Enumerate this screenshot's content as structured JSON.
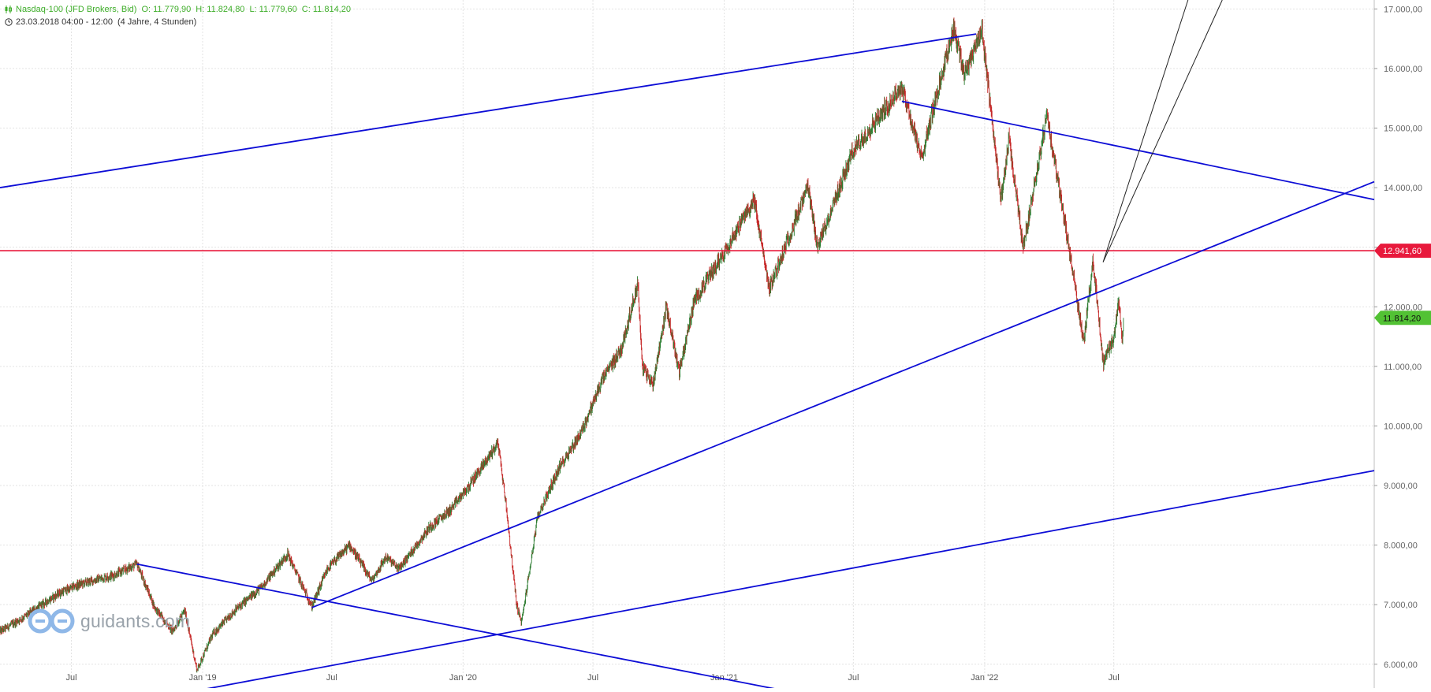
{
  "header": {
    "instrument": "Nasdaq-100 (JFD Brokers, Bid)",
    "open": "O: 11.779,90",
    "high": "H: 11.824,80",
    "low": "L: 11.779,60",
    "close": "C: 11.814,20",
    "period": "23.03.2018 04:00 - 12:00",
    "span": "(4 Jahre, 4 Stunden)"
  },
  "logo": {
    "text": "guidants.com"
  },
  "colors": {
    "trendline": "#0d0dd6",
    "level_line": "#e8193c",
    "up_candle": "#2e7d32",
    "down_candle": "#c62828",
    "last_price_badge": "#52c234",
    "grid": "#e3e3e3"
  },
  "chart_data": {
    "type": "candlestick",
    "title": "Nasdaq-100 (JFD Brokers, Bid)",
    "x_ticks": [
      "Jul",
      "Jan '19",
      "Jul",
      "Jan '20",
      "Jul",
      "Jan '21",
      "Jul",
      "Jan '22",
      "Jul"
    ],
    "x_tick_dates": [
      "2018-07-01",
      "2019-01-01",
      "2019-07-01",
      "2020-01-01",
      "2020-07-01",
      "2021-01-01",
      "2021-07-01",
      "2022-01-01",
      "2022-07-01"
    ],
    "x_range": [
      "2018-03-23",
      "2023-07-01"
    ],
    "y_ticks": [
      "6.000,00",
      "7.000,00",
      "8.000,00",
      "9.000,00",
      "10.000,00",
      "11.000,00",
      "12.000,00",
      "13.000,00",
      "14.000,00",
      "15.000,00",
      "16.000,00",
      "17.000,00"
    ],
    "y_range": [
      5600,
      17150
    ],
    "grid": true,
    "price_path": [
      [
        "2018-03-23",
        6550
      ],
      [
        "2018-04-20",
        6750
      ],
      [
        "2018-05-15",
        6950
      ],
      [
        "2018-06-15",
        7200
      ],
      [
        "2018-07-15",
        7350
      ],
      [
        "2018-08-30",
        7500
      ],
      [
        "2018-10-01",
        7680
      ],
      [
        "2018-10-26",
        6950
      ],
      [
        "2018-11-20",
        6550
      ],
      [
        "2018-12-07",
        6900
      ],
      [
        "2018-12-24",
        5900
      ],
      [
        "2019-01-15",
        6500
      ],
      [
        "2019-02-15",
        6900
      ],
      [
        "2019-03-25",
        7300
      ],
      [
        "2019-04-30",
        7850
      ],
      [
        "2019-06-03",
        6970
      ],
      [
        "2019-06-25",
        7600
      ],
      [
        "2019-07-26",
        8000
      ],
      [
        "2019-08-26",
        7400
      ],
      [
        "2019-09-15",
        7800
      ],
      [
        "2019-10-03",
        7600
      ],
      [
        "2019-11-15",
        8300
      ],
      [
        "2019-12-15",
        8600
      ],
      [
        "2020-01-10",
        9000
      ],
      [
        "2020-02-19",
        9720
      ],
      [
        "2020-03-01",
        8700
      ],
      [
        "2020-03-16",
        7000
      ],
      [
        "2020-03-23",
        6700
      ],
      [
        "2020-04-15",
        8500
      ],
      [
        "2020-05-15",
        9300
      ],
      [
        "2020-06-15",
        9900
      ],
      [
        "2020-07-15",
        10800
      ],
      [
        "2020-08-10",
        11300
      ],
      [
        "2020-09-02",
        12400
      ],
      [
        "2020-09-08",
        11000
      ],
      [
        "2020-09-23",
        10700
      ],
      [
        "2020-10-12",
        12000
      ],
      [
        "2020-10-30",
        10900
      ],
      [
        "2020-11-20",
        12100
      ],
      [
        "2020-12-31",
        12900
      ],
      [
        "2021-02-12",
        13800
      ],
      [
        "2021-03-05",
        12300
      ],
      [
        "2021-04-28",
        14000
      ],
      [
        "2021-05-12",
        13000
      ],
      [
        "2021-06-30",
        14600
      ],
      [
        "2021-07-31",
        15100
      ],
      [
        "2021-09-07",
        15700
      ],
      [
        "2021-10-04",
        14500
      ],
      [
        "2021-11-19",
        16700
      ],
      [
        "2021-12-03",
        15900
      ],
      [
        "2021-12-28",
        16650
      ],
      [
        "2022-01-24",
        13800
      ],
      [
        "2022-02-04",
        14800
      ],
      [
        "2022-02-24",
        13000
      ],
      [
        "2022-03-29",
        15200
      ],
      [
        "2022-04-25",
        13300
      ],
      [
        "2022-05-20",
        11400
      ],
      [
        "2022-06-02",
        12800
      ],
      [
        "2022-06-16",
        11050
      ],
      [
        "2022-07-01",
        11500
      ],
      [
        "2022-07-08",
        12100
      ],
      [
        "2022-07-13",
        11400
      ],
      [
        "2022-07-15",
        11814.2
      ]
    ],
    "lines": [
      {
        "kind": "trendline",
        "from": [
          "2018-03-23",
          14000
        ],
        "to": [
          "2021-12-20",
          16580
        ]
      },
      {
        "kind": "trendline",
        "from": [
          "2019-06-03",
          6950
        ],
        "to": [
          "2023-07-01",
          14100
        ]
      },
      {
        "kind": "trendline",
        "from": [
          "2018-10-01",
          7680
        ],
        "to": [
          "2021-06-01",
          5400
        ]
      },
      {
        "kind": "trendline",
        "from": [
          "2018-10-15",
          5400
        ],
        "to": [
          "2023-07-01",
          9250
        ]
      },
      {
        "kind": "trendline",
        "from": [
          "2021-09-07",
          15450
        ],
        "to": [
          "2023-07-01",
          13800
        ]
      },
      {
        "kind": "thin_line",
        "from": [
          "2022-06-16",
          12750
        ],
        "to": [
          "2022-10-13",
          17150
        ]
      },
      {
        "kind": "thin_line",
        "from": [
          "2022-06-16",
          12750
        ],
        "to": [
          "2022-11-30",
          17150
        ]
      }
    ],
    "levels": [
      {
        "label": "12.941,60",
        "value": 12941.6,
        "color": "#e8193c"
      },
      {
        "label": "11.814,20",
        "value": 11814.2,
        "color": "#52c234"
      }
    ]
  }
}
